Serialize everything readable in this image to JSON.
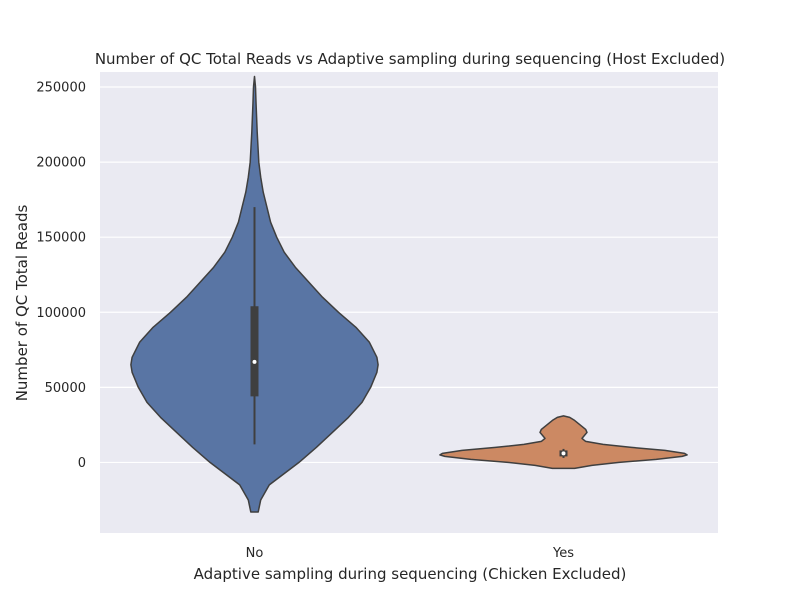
{
  "chart_data": {
    "type": "violin",
    "title": "Number of QC Total Reads vs Adaptive sampling during sequencing (Host Excluded)",
    "xlabel": "Adaptive sampling during sequencing (Chicken Excluded)",
    "ylabel": "Number of QC Total Reads",
    "categories": [
      "No",
      "Yes"
    ],
    "ylim": [
      -47000,
      260000
    ],
    "yticks": [
      0,
      50000,
      100000,
      150000,
      200000,
      250000
    ],
    "ytick_labels": [
      "0",
      "50000",
      "100000",
      "150000",
      "200000",
      "250000"
    ],
    "grid": true,
    "colors": {
      "No": "#5975a4",
      "Yes": "#cc8963",
      "outline": "#3f3f3f",
      "background": "#eaeaf2",
      "grid": "#ffffff"
    },
    "violins": [
      {
        "category": "No",
        "extent": [
          -33000,
          257000
        ],
        "median": 67000,
        "q1": 44000,
        "q3": 104000,
        "whisker_low": 12000,
        "whisker_high": 170000,
        "density_rel": [
          [
            -33000,
            0.03
          ],
          [
            -25000,
            0.05
          ],
          [
            -15000,
            0.12
          ],
          [
            -5000,
            0.28
          ],
          [
            0,
            0.36
          ],
          [
            10000,
            0.5
          ],
          [
            20000,
            0.63
          ],
          [
            30000,
            0.76
          ],
          [
            40000,
            0.87
          ],
          [
            50000,
            0.94
          ],
          [
            60000,
            0.99
          ],
          [
            65000,
            1.0
          ],
          [
            70000,
            0.99
          ],
          [
            80000,
            0.93
          ],
          [
            90000,
            0.82
          ],
          [
            100000,
            0.68
          ],
          [
            110000,
            0.55
          ],
          [
            120000,
            0.44
          ],
          [
            130000,
            0.33
          ],
          [
            140000,
            0.24
          ],
          [
            150000,
            0.18
          ],
          [
            160000,
            0.13
          ],
          [
            170000,
            0.1
          ],
          [
            180000,
            0.07
          ],
          [
            190000,
            0.05
          ],
          [
            200000,
            0.035
          ],
          [
            210000,
            0.028
          ],
          [
            220000,
            0.022
          ],
          [
            230000,
            0.017
          ],
          [
            240000,
            0.012
          ],
          [
            250000,
            0.008
          ],
          [
            257000,
            0.0
          ]
        ]
      },
      {
        "category": "Yes",
        "extent": [
          -4000,
          31000
        ],
        "median": 6000,
        "q1": 4000,
        "q3": 8000,
        "whisker_low": 3000,
        "whisker_high": 9000,
        "density_rel": [
          [
            -4000,
            0.09
          ],
          [
            -2000,
            0.23
          ],
          [
            0,
            0.45
          ],
          [
            2000,
            0.75
          ],
          [
            4000,
            0.96
          ],
          [
            5000,
            1.0
          ],
          [
            6000,
            0.98
          ],
          [
            8000,
            0.82
          ],
          [
            10000,
            0.55
          ],
          [
            12000,
            0.32
          ],
          [
            14000,
            0.18
          ],
          [
            16000,
            0.15
          ],
          [
            18000,
            0.17
          ],
          [
            20000,
            0.19
          ],
          [
            22000,
            0.18
          ],
          [
            24000,
            0.15
          ],
          [
            26000,
            0.12
          ],
          [
            28000,
            0.09
          ],
          [
            30000,
            0.05
          ],
          [
            31000,
            0.0
          ]
        ]
      }
    ]
  }
}
